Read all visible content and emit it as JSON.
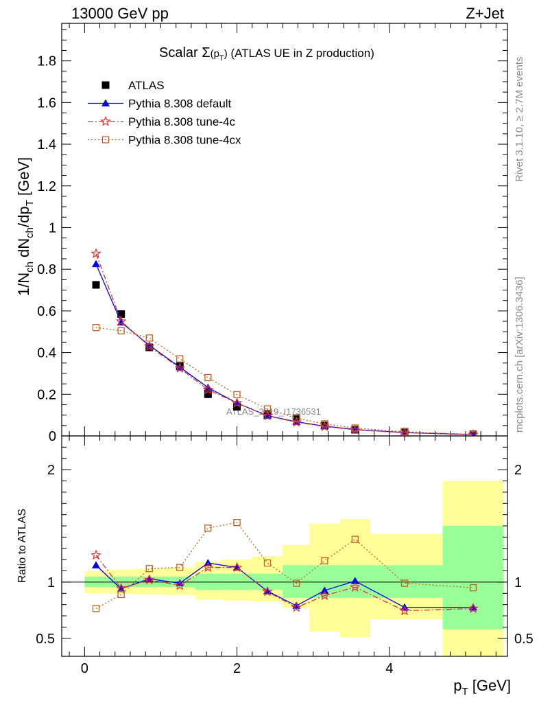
{
  "header": {
    "left": "13000 GeV pp",
    "right": "Z+Jet"
  },
  "title": {
    "prefix": "Scalar ",
    "sigma": "Σ",
    "arg": "(p",
    "arg_sub": "T",
    "arg_close": ")",
    "suffix": " (ATLAS UE in Z production)"
  },
  "side_labels": {
    "rivet": "Rivet 3.1.10, ≥ 2.7M events",
    "mcplots": "mcplots.cern.ch [arXiv:1306.3436]"
  },
  "watermark": "ATLAS_2019_I1736531",
  "axes": {
    "ylabel": {
      "a": "1/N",
      "a_sub": "ch",
      "b": " dN",
      "b_sub": "ch",
      "c": "/dp",
      "c_sub": "T",
      "d": " [GeV]"
    },
    "ratio_ylabel": "Ratio to ATLAS",
    "xlabel": {
      "a": "p",
      "a_sub": "T",
      "b": " [GeV]"
    }
  },
  "colors": {
    "atlas": "#000000",
    "default": "#0000ee",
    "tune4c": "#e03030",
    "tune4cx": "#c06020",
    "band_stat": "#99ff99",
    "band_total": "#ffff99"
  },
  "chart_data": {
    "type": "line",
    "xlim": [
      -0.3,
      5.55
    ],
    "main": {
      "ylim": [
        0,
        1.98
      ],
      "yticks": [
        0,
        0.2,
        0.4,
        0.6,
        0.8,
        1,
        1.2,
        1.4,
        1.6,
        1.8
      ],
      "ytick_labels": [
        "0",
        "0.2",
        "0.4",
        "0.6",
        "0.8",
        "1",
        "1.2",
        "1.4",
        "1.6",
        "1.8"
      ]
    },
    "ratio": {
      "ylim": [
        0.34,
        2.3
      ],
      "yticks": [
        0.5,
        1,
        2
      ],
      "ytick_labels": [
        "0.5",
        "1",
        "2"
      ]
    },
    "xticks": [
      0,
      2,
      4
    ],
    "xtick_labels": [
      "0",
      "2",
      "4"
    ],
    "bin_edges": [
      0,
      0.3,
      0.65,
      1.05,
      1.45,
      1.8,
      2.2,
      2.6,
      2.95,
      3.35,
      3.75,
      4.7,
      5.5
    ],
    "x": [
      0.15,
      0.48,
      0.85,
      1.25,
      1.62,
      2.0,
      2.4,
      2.78,
      3.15,
      3.55,
      4.2,
      5.1
    ],
    "series": [
      {
        "name": "ATLAS",
        "key": "atlas",
        "marker": "square",
        "line": "none",
        "values": [
          0.725,
          0.585,
          0.425,
          0.335,
          0.2,
          0.14,
          0.105,
          0.085,
          0.05,
          0.03,
          0.02,
          0.008
        ]
      },
      {
        "name": "Pythia 8.308 default",
        "key": "default",
        "marker": "triangle",
        "line": "solid",
        "values": [
          0.825,
          0.545,
          0.435,
          0.33,
          0.232,
          0.158,
          0.097,
          0.068,
          0.047,
          0.031,
          0.016,
          0.0065
        ]
      },
      {
        "name": "Pythia 8.308 tune-4c",
        "key": "tune4c",
        "marker": "star",
        "line": "dashdot",
        "values": [
          0.875,
          0.55,
          0.43,
          0.325,
          0.222,
          0.158,
          0.096,
          0.066,
          0.045,
          0.029,
          0.0155,
          0.0063
        ]
      },
      {
        "name": "Pythia 8.308 tune-4cx",
        "key": "tune4cx",
        "marker": "open-square",
        "line": "dotted",
        "values": [
          0.52,
          0.505,
          0.47,
          0.37,
          0.28,
          0.198,
          0.13,
          0.085,
          0.058,
          0.038,
          0.02,
          0.0076
        ]
      }
    ],
    "ratio_series": [
      {
        "key": "default",
        "values": [
          1.15,
          0.94,
          1.03,
          0.99,
          1.17,
          1.13,
          0.92,
          0.79,
          0.925,
          1.01,
          0.775,
          0.775
        ]
      },
      {
        "key": "tune4c",
        "values": [
          1.24,
          0.945,
          1.02,
          0.97,
          1.13,
          1.13,
          0.915,
          0.775,
          0.88,
          0.955,
          0.745,
          0.765
        ]
      },
      {
        "key": "tune4cx",
        "values": [
          0.765,
          0.89,
          1.12,
          1.13,
          1.48,
          1.53,
          1.17,
          0.99,
          1.19,
          1.38,
          0.99,
          0.95
        ]
      }
    ],
    "band_stat": {
      "lo": [
        0.955,
        0.955,
        0.955,
        0.955,
        0.93,
        0.93,
        0.93,
        0.86,
        0.86,
        0.86,
        0.86,
        0.58
      ],
      "hi": [
        1.05,
        1.05,
        1.05,
        1.05,
        1.075,
        1.075,
        1.075,
        1.15,
        1.15,
        1.15,
        1.15,
        1.5
      ]
    },
    "band_total": {
      "lo": [
        0.9,
        0.895,
        0.89,
        0.885,
        0.845,
        0.835,
        0.825,
        0.77,
        0.56,
        0.51,
        0.67,
        0.34
      ],
      "hi": [
        1.1,
        1.11,
        1.12,
        1.13,
        1.18,
        1.2,
        1.23,
        1.33,
        1.52,
        1.56,
        1.43,
        1.9
      ]
    }
  }
}
